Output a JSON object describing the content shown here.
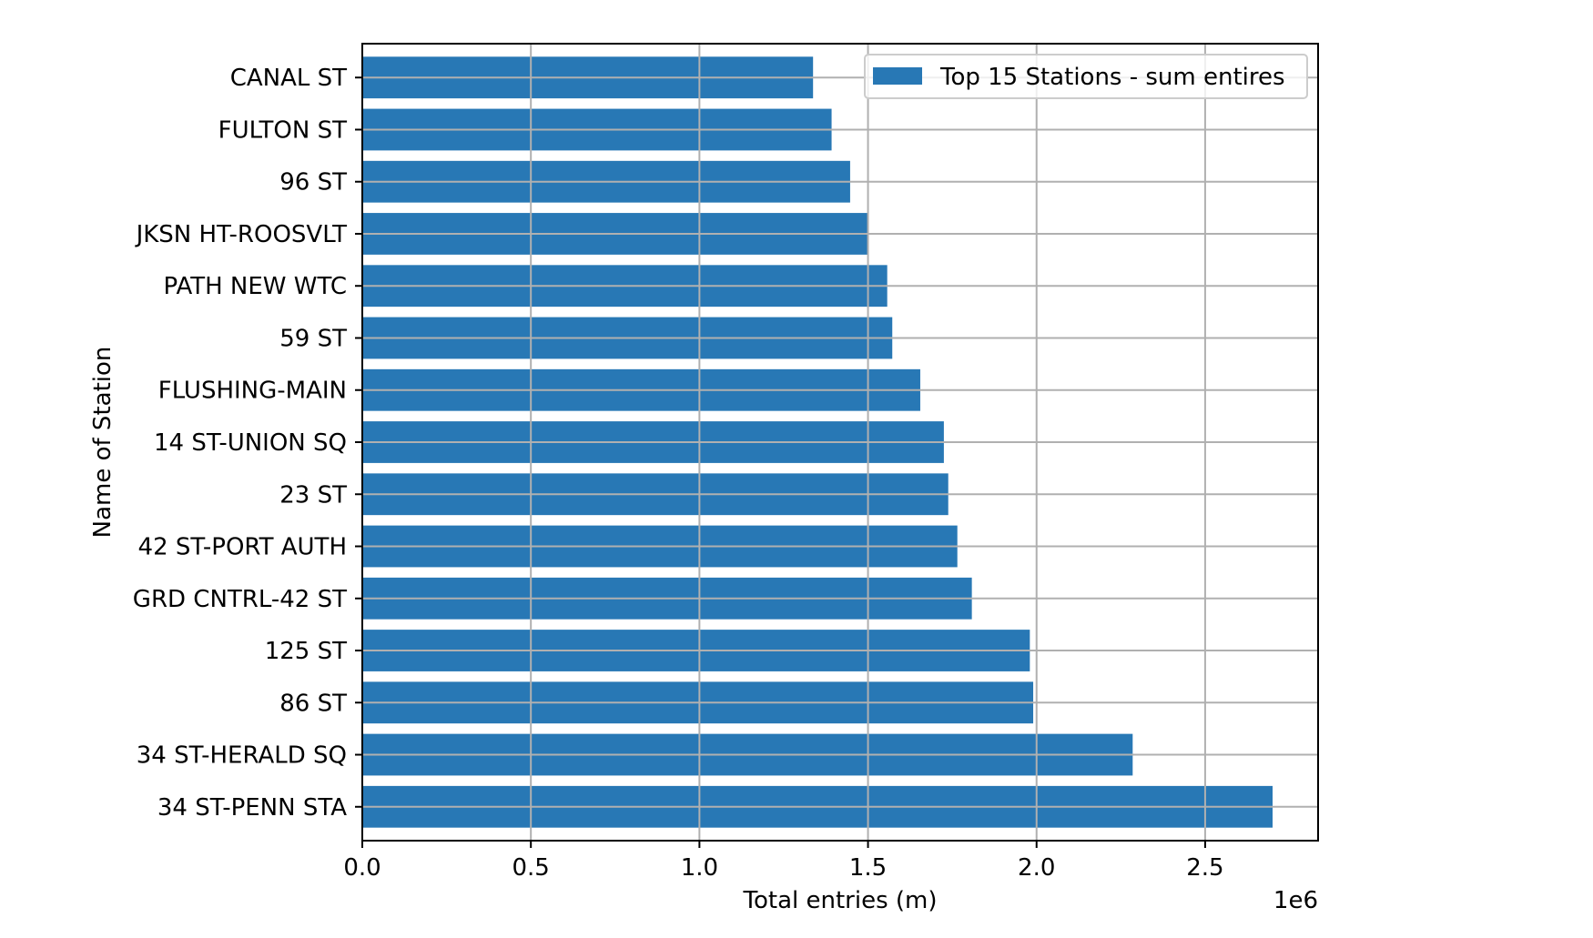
{
  "chart_data": {
    "type": "bar",
    "orientation": "horizontal",
    "categories": [
      "34 ST-PENN STA",
      "34 ST-HERALD SQ",
      "86 ST",
      "125 ST",
      "GRD CNTRL-42 ST",
      "42 ST-PORT AUTH",
      "23 ST",
      "14 ST-UNION SQ",
      "FLUSHING-MAIN",
      "59 ST",
      "PATH NEW WTC",
      "JKSN HT-ROOSVLT",
      "96 ST",
      "FULTON ST",
      "CANAL ST"
    ],
    "series": [
      {
        "name": "Top 15 Stations - sum entires",
        "values": [
          2700000,
          2285000,
          1990000,
          1980000,
          1808000,
          1765000,
          1738000,
          1725000,
          1655000,
          1572000,
          1557000,
          1502000,
          1447000,
          1392000,
          1337000
        ]
      }
    ],
    "xlabel": "Total entries (m)",
    "ylabel": "Name of Station",
    "x_scale_label": "1e6",
    "x_ticks": [
      "0.0",
      "0.5",
      "1.0",
      "1.5",
      "2.0",
      "2.5"
    ],
    "x_tick_values": [
      0,
      500000,
      1000000,
      1500000,
      2000000,
      2500000
    ],
    "xlim": [
      0,
      2835000
    ],
    "grid": true,
    "legend_position": "upper right",
    "colors": {
      "bar": "#2878b5",
      "grid": "#b0b0b0",
      "axes": "#000000"
    }
  }
}
